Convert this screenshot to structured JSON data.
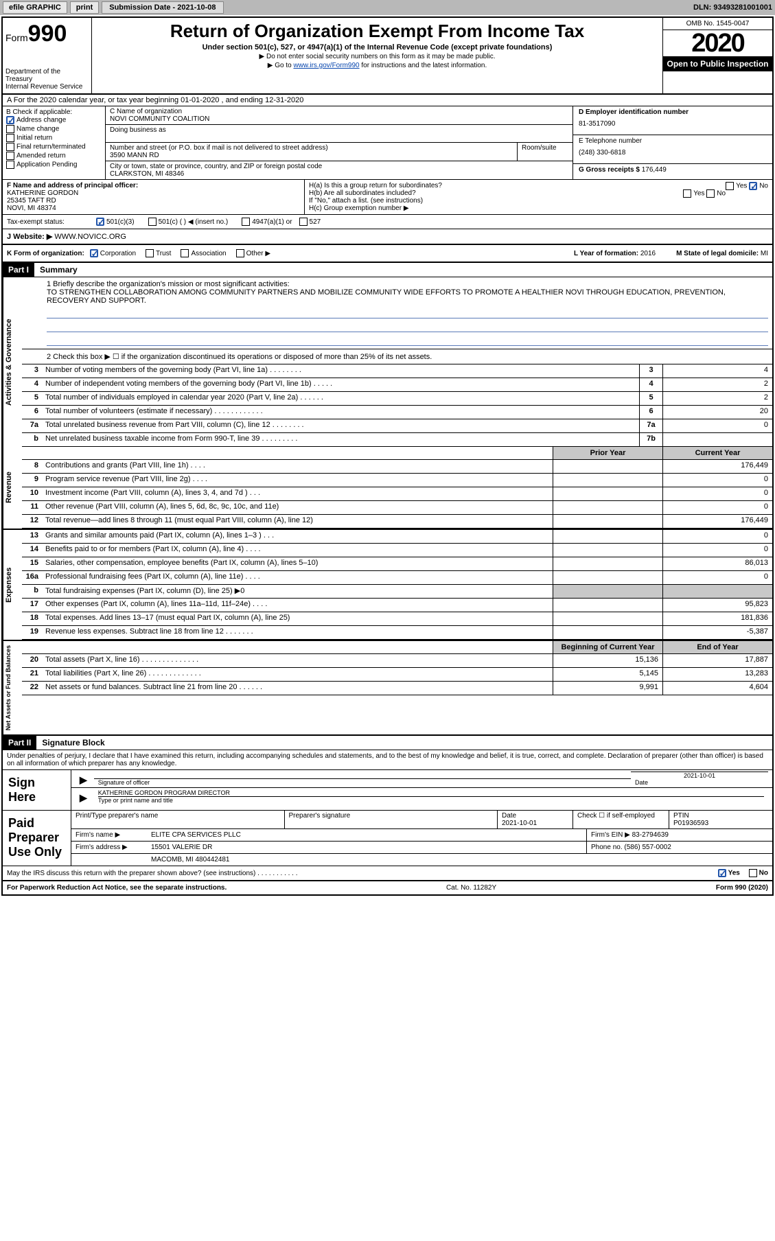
{
  "topbar": {
    "efile": "efile GRAPHIC",
    "print": "print",
    "subdate_label": "Submission Date - 2021-10-08",
    "dln": "DLN: 93493281001001"
  },
  "header": {
    "form_prefix": "Form",
    "form_num": "990",
    "dept1": "Department of the Treasury",
    "dept2": "Internal Revenue Service",
    "title": "Return of Organization Exempt From Income Tax",
    "sub1": "Under section 501(c), 527, or 4947(a)(1) of the Internal Revenue Code (except private foundations)",
    "sub2": "▶ Do not enter social security numbers on this form as it may be made public.",
    "sub3_pre": "▶ Go to ",
    "sub3_link": "www.irs.gov/Form990",
    "sub3_post": " for instructions and the latest information.",
    "omb": "OMB No. 1545-0047",
    "year": "2020",
    "open": "Open to Public Inspection"
  },
  "row_a": "A For the 2020 calendar year, or tax year beginning 01-01-2020    , and ending 12-31-2020",
  "col_b": {
    "label": "B Check if applicable:",
    "addr_change": "Address change",
    "name_change": "Name change",
    "initial": "Initial return",
    "final": "Final return/terminated",
    "amended": "Amended return",
    "app": "Application Pending"
  },
  "col_c": {
    "name_label": "C Name of organization",
    "name": "NOVI COMMUNITY COALITION",
    "dba_label": "Doing business as",
    "addr_label": "Number and street (or P.O. box if mail is not delivered to street address)",
    "addr": "3590 MANN RD",
    "room_label": "Room/suite",
    "city_label": "City or town, state or province, country, and ZIP or foreign postal code",
    "city": "CLARKSTON, MI  48346"
  },
  "col_d": {
    "ein_label": "D Employer identification number",
    "ein": "81-3517090",
    "tel_label": "E Telephone number",
    "tel": "(248) 330-6818",
    "gross_label": "G Gross receipts $ ",
    "gross": "176,449"
  },
  "row_f": {
    "label": "F  Name and address of principal officer:",
    "name": "KATHERINE GORDON",
    "addr1": "25345 TAFT RD",
    "addr2": "NOVI, MI  48374"
  },
  "row_h": {
    "ha": "H(a)  Is this a group return for subordinates?",
    "hb": "H(b)  Are all subordinates included?",
    "hb_note": "If \"No,\" attach a list. (see instructions)",
    "hc": "H(c)  Group exemption number ▶",
    "yes": "Yes",
    "no": "No"
  },
  "row_tax": {
    "label": "Tax-exempt status:",
    "o1": "501(c)(3)",
    "o2": "501(c) (   ) ◀ (insert no.)",
    "o3": "4947(a)(1) or",
    "o4": "527"
  },
  "row_j": {
    "label": "J   Website: ▶  ",
    "val": "WWW.NOVICC.ORG"
  },
  "row_k": {
    "label": "K Form of organization:",
    "corp": "Corporation",
    "trust": "Trust",
    "assoc": "Association",
    "other": "Other ▶",
    "l_label": "L Year of formation: ",
    "l_val": "2016",
    "m_label": "M State of legal domicile: ",
    "m_val": "MI"
  },
  "part1": {
    "hdr": "Part I",
    "title": "Summary",
    "q1_label": "1  Briefly describe the organization's mission or most significant activities:",
    "q1_text": "TO STRENGTHEN COLLABORATION AMONG COMMUNITY PARTNERS AND MOBILIZE COMMUNITY WIDE EFFORTS TO PROMOTE A HEALTHIER NOVI THROUGH EDUCATION, PREVENTION, RECOVERY AND SUPPORT.",
    "q2": "2   Check this box ▶ ☐  if the organization discontinued its operations or disposed of more than 25% of its net assets."
  },
  "side_labels": {
    "gov": "Activities & Governance",
    "rev": "Revenue",
    "exp": "Expenses",
    "net": "Net Assets or Fund Balances"
  },
  "gov_lines": [
    {
      "n": "3",
      "d": "Number of voting members of the governing body (Part VI, line 1a)  .    .    .    .    .    .    .    .",
      "box": "3",
      "v": "4"
    },
    {
      "n": "4",
      "d": "Number of independent voting members of the governing body (Part VI, line 1b)  .    .    .    .    .",
      "box": "4",
      "v": "2"
    },
    {
      "n": "5",
      "d": "Total number of individuals employed in calendar year 2020 (Part V, line 2a)  .    .    .    .    .    .",
      "box": "5",
      "v": "2"
    },
    {
      "n": "6",
      "d": "Total number of volunteers (estimate if necessary)    .    .    .    .    .    .    .    .    .    .    .    .",
      "box": "6",
      "v": "20"
    },
    {
      "n": "7a",
      "d": "Total unrelated business revenue from Part VIII, column (C), line 12  .    .    .    .    .    .    .    .",
      "box": "7a",
      "v": "0"
    },
    {
      "n": "b",
      "d": "Net unrelated business taxable income from Form 990-T, line 39   .    .    .    .    .    .    .    .    .",
      "box": "7b",
      "v": ""
    }
  ],
  "col_hdrs": {
    "prior": "Prior Year",
    "curr": "Current Year",
    "boy": "Beginning of Current Year",
    "eoy": "End of Year"
  },
  "rev_lines": [
    {
      "n": "8",
      "d": "Contributions and grants (Part VIII, line 1h)   .    .    .    .",
      "p": "",
      "c": "176,449"
    },
    {
      "n": "9",
      "d": "Program service revenue (Part VIII, line 2g)   .    .    .    .",
      "p": "",
      "c": "0"
    },
    {
      "n": "10",
      "d": "Investment income (Part VIII, column (A), lines 3, 4, and 7d )   .    .    .",
      "p": "",
      "c": "0"
    },
    {
      "n": "11",
      "d": "Other revenue (Part VIII, column (A), lines 5, 6d, 8c, 9c, 10c, and 11e)",
      "p": "",
      "c": "0"
    },
    {
      "n": "12",
      "d": "Total revenue—add lines 8 through 11 (must equal Part VIII, column (A), line 12)",
      "p": "",
      "c": "176,449"
    }
  ],
  "exp_lines": [
    {
      "n": "13",
      "d": "Grants and similar amounts paid (Part IX, column (A), lines 1–3 )  .    .    .",
      "p": "",
      "c": "0"
    },
    {
      "n": "14",
      "d": "Benefits paid to or for members (Part IX, column (A), line 4)   .    .    .    .",
      "p": "",
      "c": "0"
    },
    {
      "n": "15",
      "d": "Salaries, other compensation, employee benefits (Part IX, column (A), lines 5–10)",
      "p": "",
      "c": "86,013"
    },
    {
      "n": "16a",
      "d": "Professional fundraising fees (Part IX, column (A), line 11e)  .    .    .    .",
      "p": "",
      "c": "0"
    },
    {
      "n": "b",
      "d": "Total fundraising expenses (Part IX, column (D), line 25) ▶0",
      "p": "shade",
      "c": "shade"
    },
    {
      "n": "17",
      "d": "Other expenses (Part IX, column (A), lines 11a–11d, 11f–24e)   .    .    .    .",
      "p": "",
      "c": "95,823"
    },
    {
      "n": "18",
      "d": "Total expenses. Add lines 13–17 (must equal Part IX, column (A), line 25)",
      "p": "",
      "c": "181,836"
    },
    {
      "n": "19",
      "d": "Revenue less expenses. Subtract line 18 from line 12  .    .    .    .    .    .    .",
      "p": "",
      "c": "-5,387"
    }
  ],
  "net_lines": [
    {
      "n": "20",
      "d": "Total assets (Part X, line 16)  .    .    .    .    .    .    .    .    .    .    .    .    .    .",
      "p": "15,136",
      "c": "17,887"
    },
    {
      "n": "21",
      "d": "Total liabilities (Part X, line 26)  .    .    .    .    .    .    .    .    .    .    .    .    .",
      "p": "5,145",
      "c": "13,283"
    },
    {
      "n": "22",
      "d": "Net assets or fund balances. Subtract line 21 from line 20  .    .    .    .    .    .",
      "p": "9,991",
      "c": "4,604"
    }
  ],
  "part2": {
    "hdr": "Part II",
    "title": "Signature Block",
    "decl": "Under penalties of perjury, I declare that I have examined this return, including accompanying schedules and statements, and to the best of my knowledge and belief, it is true, correct, and complete. Declaration of preparer (other than officer) is based on all information of which preparer has any knowledge."
  },
  "sign": {
    "here": "Sign Here",
    "sig_label": "Signature of officer",
    "date_label": "Date",
    "date": "2021-10-01",
    "name": "KATHERINE GORDON  PROGRAM DIRECTOR",
    "name_label": "Type or print name and title"
  },
  "prep": {
    "label": "Paid Preparer Use Only",
    "h1": "Print/Type preparer's name",
    "h2": "Preparer's signature",
    "h3": "Date",
    "h3v": "2021-10-01",
    "h4": "Check ☐ if self-employed",
    "h5": "PTIN",
    "h5v": "P01936593",
    "firm_label": "Firm's name     ▶",
    "firm": "ELITE CPA SERVICES PLLC",
    "ein_label": "Firm's EIN ▶ ",
    "ein": "83-2794639",
    "addr_label": "Firm's address ▶",
    "addr1": "15501 VALERIE DR",
    "addr2": "MACOMB, MI  480442481",
    "phone_label": "Phone no. ",
    "phone": "(586) 557-0002",
    "may": "May the IRS discuss this return with the preparer shown above? (see instructions)   .    .    .    .    .    .    .    .    .    .    .",
    "yes": "Yes",
    "no": "No"
  },
  "footer": {
    "left": "For Paperwork Reduction Act Notice, see the separate instructions.",
    "center": "Cat. No. 11282Y",
    "right": "Form 990 (2020)"
  }
}
